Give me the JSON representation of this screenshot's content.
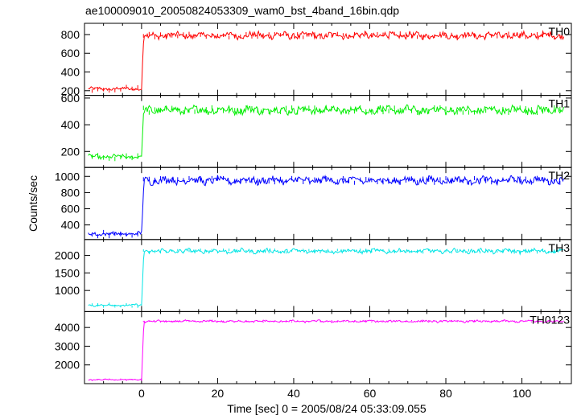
{
  "chart_data": {
    "type": "line",
    "title": "ae100009010_20050824053309_wam0_bst_4band_16bin.qdp",
    "xlabel": "Time [sec] 0 = 2005/08/24 05:33:09.055",
    "ylabel": "Counts/sec",
    "xlim": [
      -15,
      113
    ],
    "xticks": [
      0,
      20,
      40,
      60,
      80,
      100
    ],
    "grid": false,
    "panels": [
      {
        "name": "TH0",
        "color": "#ff0000",
        "ylim": [
          150,
          920
        ],
        "yticks": [
          200,
          400,
          600,
          800
        ],
        "pre_level": 220,
        "post_level": 790,
        "noise": 35,
        "points": [
          [
            -14,
            215
          ],
          [
            -8,
            225
          ],
          [
            -2,
            230
          ],
          [
            0,
            235
          ],
          [
            0.5,
            700
          ],
          [
            1,
            820
          ],
          [
            20,
            790
          ],
          [
            50,
            790
          ],
          [
            80,
            800
          ],
          [
            110,
            800
          ]
        ]
      },
      {
        "name": "TH1",
        "color": "#00ee00",
        "ylim": [
          80,
          620
        ],
        "yticks": [
          200,
          400,
          600
        ],
        "pre_level": 160,
        "post_level": 510,
        "noise": 30,
        "points": [
          [
            -14,
            160
          ],
          [
            -8,
            150
          ],
          [
            -2,
            165
          ],
          [
            0,
            175
          ],
          [
            0.5,
            430
          ],
          [
            1,
            540
          ],
          [
            20,
            510
          ],
          [
            50,
            505
          ],
          [
            80,
            510
          ],
          [
            110,
            515
          ]
        ]
      },
      {
        "name": "TH2",
        "color": "#0000ff",
        "ylim": [
          220,
          1110
        ],
        "yticks": [
          400,
          600,
          800,
          1000
        ],
        "pre_level": 290,
        "post_level": 950,
        "noise": 45,
        "points": [
          [
            -14,
            300
          ],
          [
            -8,
            290
          ],
          [
            -2,
            280
          ],
          [
            0,
            285
          ],
          [
            0.5,
            900
          ],
          [
            1,
            1000
          ],
          [
            20,
            960
          ],
          [
            50,
            950
          ],
          [
            80,
            950
          ],
          [
            110,
            960
          ]
        ]
      },
      {
        "name": "TH3",
        "color": "#00e5e5",
        "ylim": [
          400,
          2450
        ],
        "yticks": [
          1000,
          1500,
          2000
        ],
        "pre_level": 580,
        "post_level": 2120,
        "noise": 60,
        "points": [
          [
            -14,
            560
          ],
          [
            -8,
            600
          ],
          [
            -2,
            590
          ],
          [
            0,
            600
          ],
          [
            0.5,
            1900
          ],
          [
            1,
            2150
          ],
          [
            20,
            2130
          ],
          [
            50,
            2110
          ],
          [
            80,
            2100
          ],
          [
            110,
            2130
          ]
        ]
      },
      {
        "name": "TH0123",
        "color": "#ff00ff",
        "ylim": [
          1000,
          4850
        ],
        "yticks": [
          2000,
          3000,
          4000
        ],
        "pre_level": 1210,
        "post_level": 4330,
        "noise": 55,
        "points": [
          [
            -14,
            1200
          ],
          [
            -8,
            1220
          ],
          [
            -2,
            1230
          ],
          [
            0,
            1240
          ],
          [
            0.5,
            4000
          ],
          [
            1,
            4400
          ],
          [
            20,
            4380
          ],
          [
            50,
            4330
          ],
          [
            80,
            4320
          ],
          [
            110,
            4340
          ]
        ]
      }
    ]
  }
}
